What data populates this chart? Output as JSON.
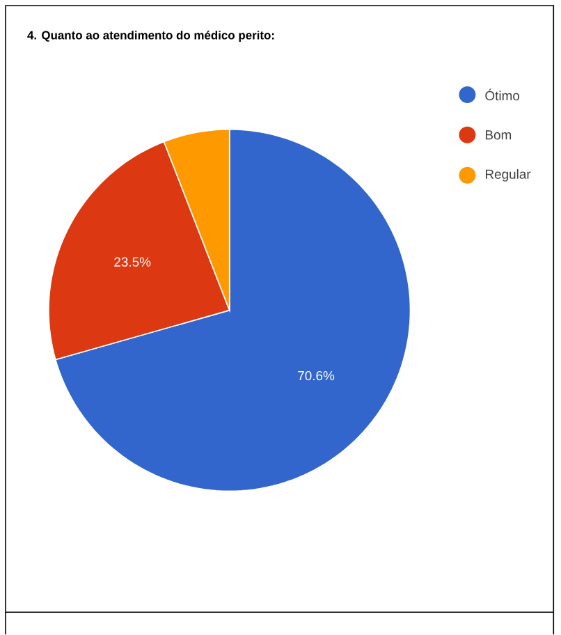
{
  "chart_data": {
    "type": "pie",
    "title": "4. Quanto ao atendimento do médico perito:",
    "categories": [
      "Ótimo",
      "Bom",
      "Regular"
    ],
    "values": [
      70.6,
      23.5,
      5.9
    ],
    "colors": [
      "#3366cc",
      "#dc3912",
      "#ff9900"
    ],
    "value_labels": [
      "70.6%",
      "23.5%",
      null
    ],
    "legend": "right"
  }
}
